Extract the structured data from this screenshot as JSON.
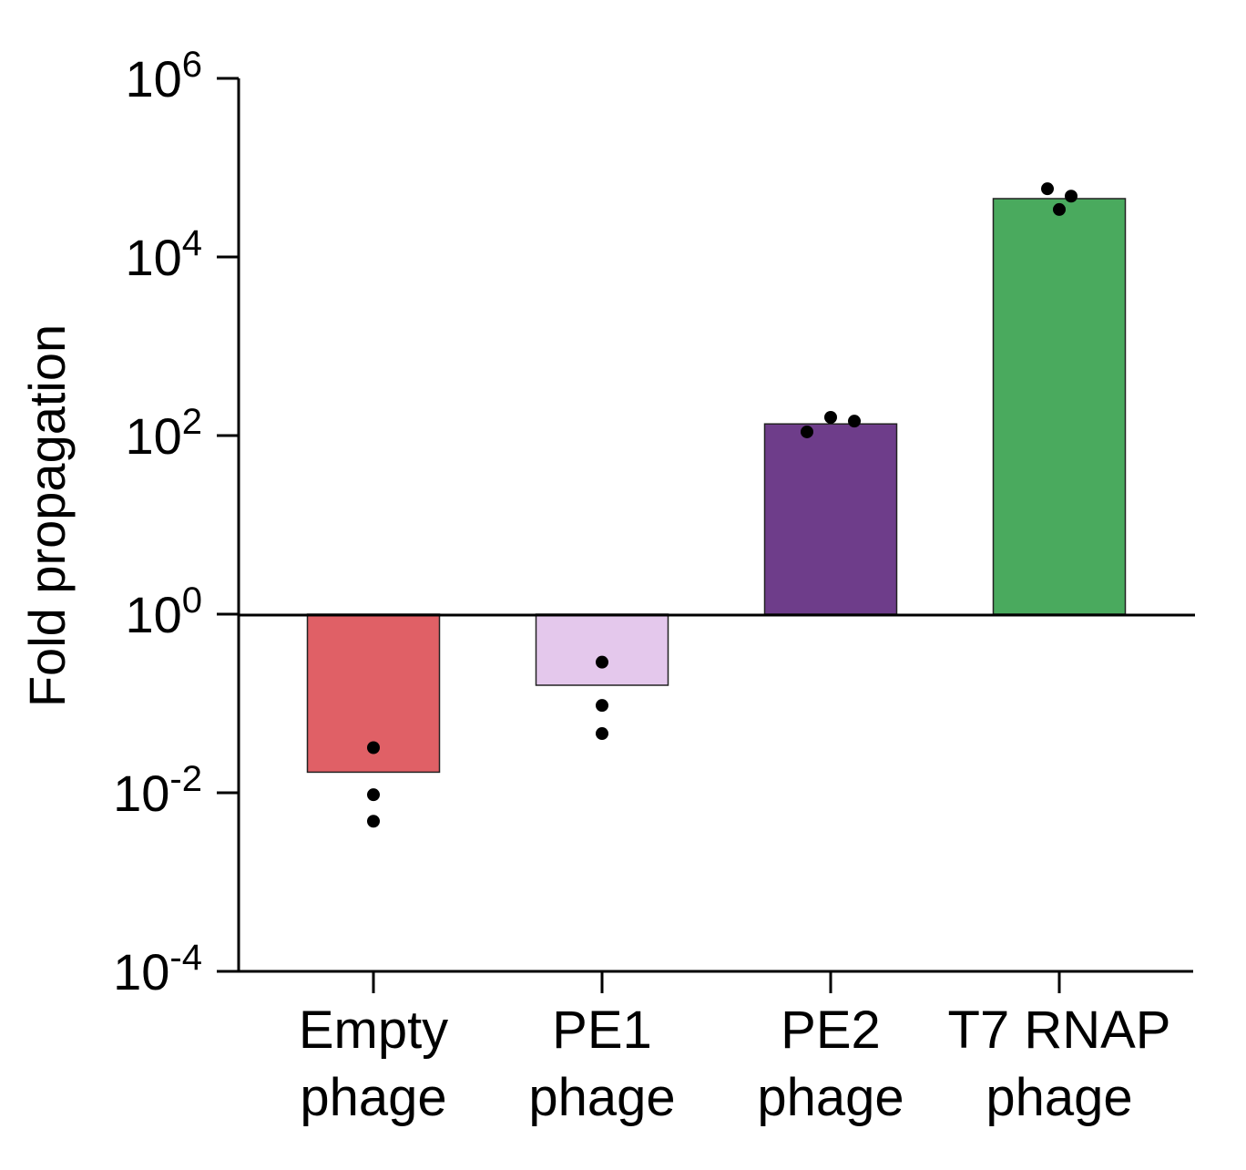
{
  "chart_data": {
    "type": "bar",
    "ylabel": "Fold propagation",
    "yscale": "log",
    "ylim": [
      0.0001,
      1000000
    ],
    "yticks": [
      {
        "value": 1000000,
        "base": "10",
        "exp": "6"
      },
      {
        "value": 10000,
        "base": "10",
        "exp": "4"
      },
      {
        "value": 100,
        "base": "10",
        "exp": "2"
      },
      {
        "value": 1,
        "base": "10",
        "exp": "0"
      },
      {
        "value": 0.01,
        "base": "10",
        "exp": "-2"
      },
      {
        "value": 0.0001,
        "base": "10",
        "exp": "-4"
      }
    ],
    "baseline": 1,
    "categories": [
      {
        "line1": "Empty",
        "line2": "phage"
      },
      {
        "line1": "PE1",
        "line2": "phage"
      },
      {
        "line1": "PE2",
        "line2": "phage"
      },
      {
        "line1": "T7 RNAP",
        "line2": "phage"
      }
    ],
    "values": [
      0.017,
      0.16,
      135,
      45000
    ],
    "colors": [
      "#e06066",
      "#e4c8ec",
      "#6e3d8a",
      "#4aaa5e"
    ],
    "points": [
      [
        0.032,
        0.0095,
        0.0048
      ],
      [
        0.29,
        0.095,
        0.046
      ],
      [
        110,
        160,
        145
      ],
      [
        58000,
        34000,
        48000
      ]
    ],
    "grid": false,
    "legend": "none"
  }
}
